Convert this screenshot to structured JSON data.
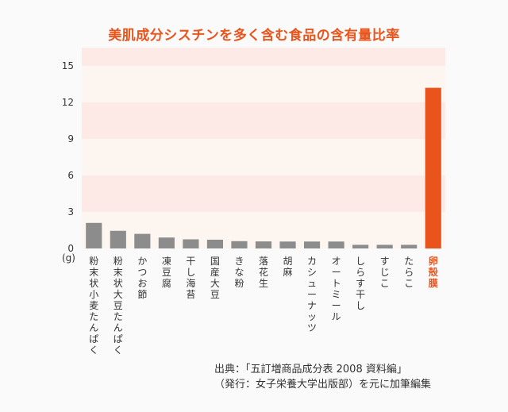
{
  "chart_data": {
    "type": "bar",
    "title": "美肌成分シスチンを多く含む食品の含有量比率",
    "unit_label": "(g)",
    "yticks": [
      0,
      3,
      6,
      9,
      12,
      15
    ],
    "ylim": [
      0,
      16.5
    ],
    "categories": [
      "粉末状小麦たんぱく",
      "粉末状大豆たんぱく",
      "かつお節",
      "凍豆腐",
      "干し海苔",
      "国産大豆",
      "きな粉",
      "落花生",
      "胡麻",
      "カシューナッツ",
      "オートミール",
      "しらす干し",
      "すじこ",
      "たらこ",
      "卵殻膜"
    ],
    "values": [
      2.1,
      1.45,
      1.2,
      0.9,
      0.75,
      0.72,
      0.6,
      0.58,
      0.57,
      0.57,
      0.57,
      0.3,
      0.3,
      0.3,
      13.2
    ],
    "highlight_index": 14,
    "colors": {
      "bar": "#8c8c8c",
      "highlight": "#e8541c",
      "band_a": "#fde9e6",
      "band_b": "#fdf5f0"
    }
  },
  "source": {
    "line1": "出典：「五訂増商品成分表 2008 資料編」",
    "line2": "（発行：女子栄養大学出版部）を元に加筆編集"
  }
}
